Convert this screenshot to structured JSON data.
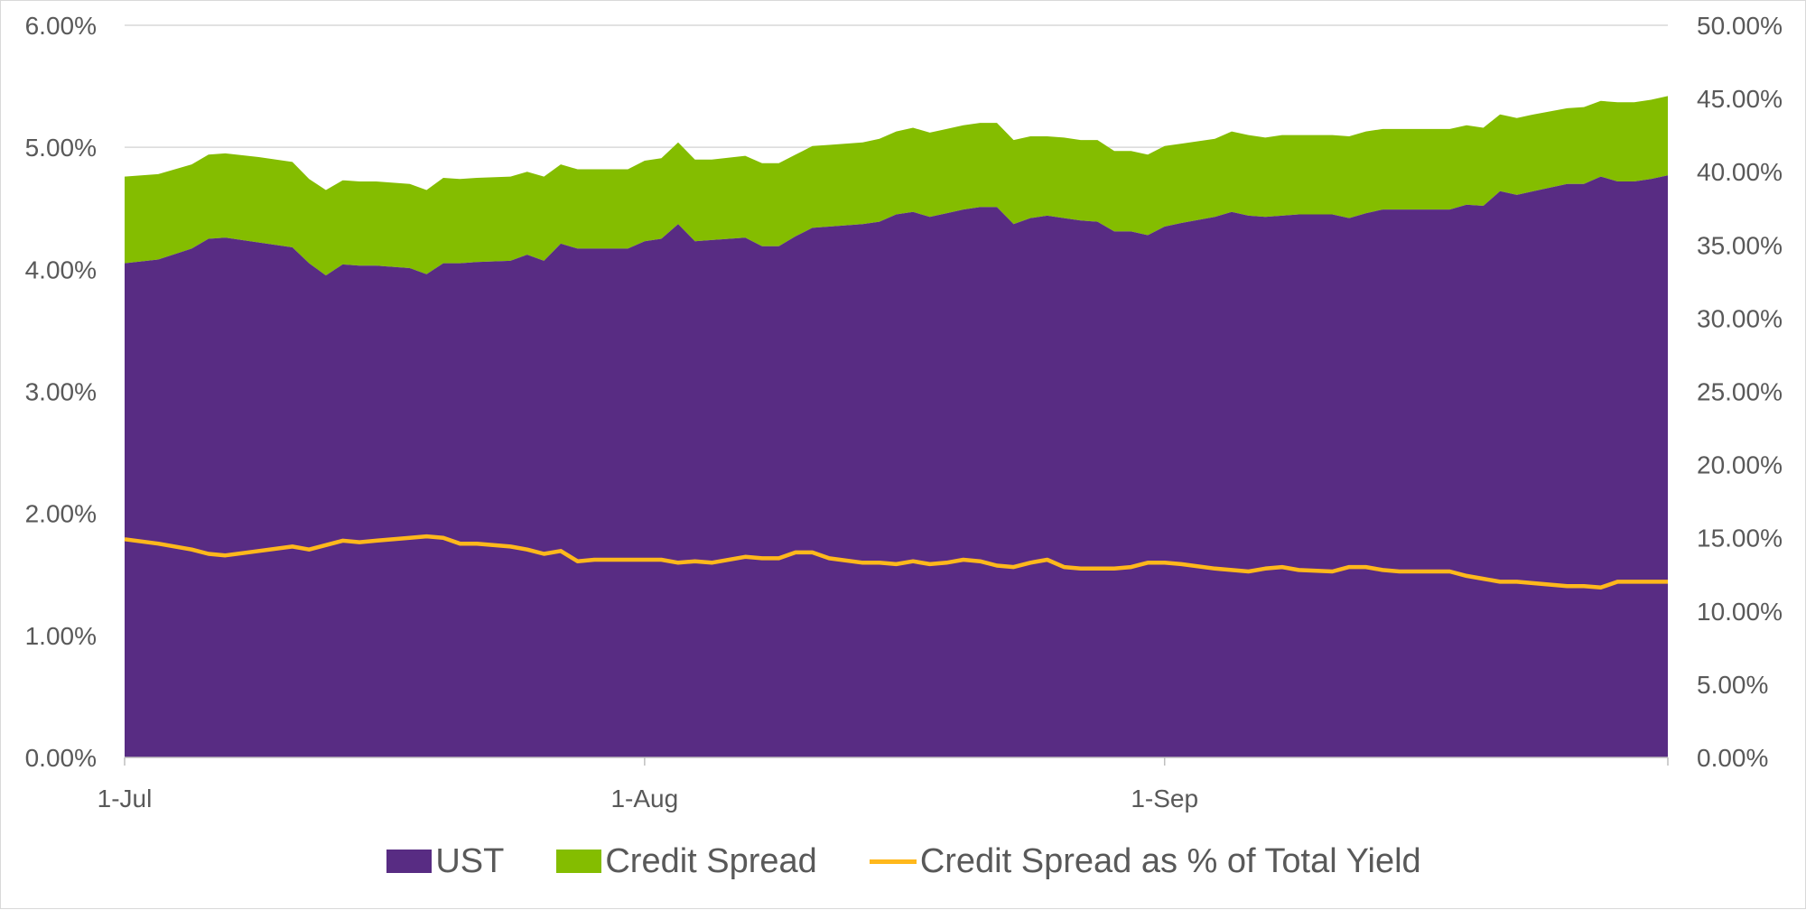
{
  "colors": {
    "ust": "#582c83",
    "spread": "#84bd00",
    "ratio": "#ffb81c",
    "grid": "#d9d9d9",
    "axis": "#bfbfbf",
    "text": "#595959"
  },
  "chart_data": {
    "type": "area",
    "x_labels": [
      "1-Jul",
      "1-Aug",
      "1-Sep"
    ],
    "x_label_positions": [
      0,
      31,
      62
    ],
    "x_range": [
      0,
      92
    ],
    "y_left": {
      "min": 0,
      "max": 6,
      "ticks": [
        "0.00%",
        "1.00%",
        "2.00%",
        "3.00%",
        "4.00%",
        "5.00%",
        "6.00%"
      ]
    },
    "y_right": {
      "min": 0,
      "max": 50,
      "ticks": [
        "0.00%",
        "5.00%",
        "10.00%",
        "15.00%",
        "20.00%",
        "25.00%",
        "30.00%",
        "35.00%",
        "40.00%",
        "45.00%",
        "50.00%"
      ]
    },
    "grid": true,
    "legend_position": "bottom",
    "x": [
      0,
      2,
      4,
      5,
      6,
      8,
      10,
      11,
      12,
      13,
      14,
      15,
      17,
      18,
      19,
      20,
      21,
      23,
      24,
      25,
      26,
      27,
      28,
      30,
      31,
      32,
      33,
      34,
      35,
      37,
      38,
      39,
      40,
      41,
      42,
      44,
      45,
      46,
      47,
      48,
      49,
      50,
      51,
      52,
      53,
      54,
      55,
      56,
      57,
      58,
      59,
      60,
      61,
      62,
      63,
      65,
      66,
      67,
      68,
      69,
      70,
      72,
      73,
      74,
      75,
      76,
      77,
      79,
      80,
      81,
      82,
      83,
      84,
      86,
      87,
      88,
      89,
      90,
      91,
      92
    ],
    "series": [
      {
        "name": "UST",
        "axis": "left",
        "kind": "stacked-area",
        "values": [
          4.05,
          4.08,
          4.17,
          4.25,
          4.26,
          4.22,
          4.18,
          4.05,
          3.95,
          4.04,
          4.03,
          4.03,
          4.01,
          3.96,
          4.05,
          4.05,
          4.06,
          4.07,
          4.12,
          4.07,
          4.21,
          4.17,
          4.17,
          4.17,
          4.23,
          4.25,
          4.37,
          4.23,
          4.24,
          4.26,
          4.19,
          4.19,
          4.27,
          4.34,
          4.35,
          4.37,
          4.39,
          4.45,
          4.47,
          4.43,
          4.46,
          4.49,
          4.51,
          4.51,
          4.37,
          4.42,
          4.44,
          4.42,
          4.4,
          4.39,
          4.31,
          4.31,
          4.28,
          4.35,
          4.38,
          4.43,
          4.47,
          4.44,
          4.43,
          4.44,
          4.45,
          4.45,
          4.42,
          4.46,
          4.49,
          4.49,
          4.49,
          4.49,
          4.53,
          4.52,
          4.64,
          4.61,
          4.64,
          4.7,
          4.7,
          4.76,
          4.72,
          4.72,
          4.74,
          4.77
        ]
      },
      {
        "name": "Credit Spread",
        "axis": "left",
        "kind": "stacked-area",
        "values": [
          0.71,
          0.7,
          0.69,
          0.69,
          0.69,
          0.7,
          0.7,
          0.69,
          0.7,
          0.69,
          0.69,
          0.69,
          0.69,
          0.69,
          0.7,
          0.69,
          0.69,
          0.69,
          0.68,
          0.69,
          0.65,
          0.65,
          0.65,
          0.65,
          0.66,
          0.66,
          0.67,
          0.67,
          0.66,
          0.67,
          0.68,
          0.68,
          0.67,
          0.67,
          0.67,
          0.67,
          0.68,
          0.68,
          0.69,
          0.69,
          0.69,
          0.69,
          0.69,
          0.69,
          0.69,
          0.67,
          0.65,
          0.66,
          0.66,
          0.67,
          0.66,
          0.66,
          0.66,
          0.66,
          0.65,
          0.64,
          0.66,
          0.66,
          0.65,
          0.66,
          0.65,
          0.65,
          0.67,
          0.67,
          0.66,
          0.66,
          0.66,
          0.66,
          0.65,
          0.64,
          0.63,
          0.63,
          0.63,
          0.62,
          0.63,
          0.62,
          0.65,
          0.65,
          0.65,
          0.65
        ]
      },
      {
        "name": "Credit Spread as % of Total Yield",
        "axis": "right",
        "kind": "line",
        "values": [
          14.9,
          14.6,
          14.2,
          13.9,
          13.8,
          14.1,
          14.4,
          14.2,
          14.5,
          14.8,
          14.7,
          14.8,
          15.0,
          15.1,
          15.0,
          14.6,
          14.6,
          14.4,
          14.2,
          13.9,
          14.1,
          13.4,
          13.5,
          13.5,
          13.5,
          13.5,
          13.3,
          13.4,
          13.3,
          13.7,
          13.6,
          13.6,
          14.0,
          14.0,
          13.6,
          13.3,
          13.3,
          13.2,
          13.4,
          13.2,
          13.3,
          13.5,
          13.4,
          13.1,
          13.0,
          13.3,
          13.5,
          13.0,
          12.9,
          12.9,
          12.9,
          13.0,
          13.3,
          13.3,
          13.2,
          12.9,
          12.8,
          12.7,
          12.9,
          13.0,
          12.8,
          12.7,
          13.0,
          13.0,
          12.8,
          12.7,
          12.7,
          12.7,
          12.4,
          12.2,
          12.0,
          12.0,
          11.9,
          11.7,
          11.7,
          11.6,
          12.0,
          12.0,
          12.0,
          12.0
        ]
      }
    ]
  },
  "legend": [
    {
      "label": "UST",
      "kind": "box",
      "color": "#582c83"
    },
    {
      "label": "Credit Spread",
      "kind": "box",
      "color": "#84bd00"
    },
    {
      "label": "Credit Spread as % of Total Yield",
      "kind": "line",
      "color": "#ffb81c"
    }
  ]
}
